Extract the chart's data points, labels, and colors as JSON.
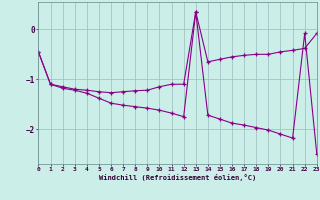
{
  "xlabel": "Windchill (Refroidissement éolien,°C)",
  "background_color": "#cceee8",
  "plot_bg_color": "#cceee8",
  "line_color": "#880088",
  "grid_color": "#99bbbb",
  "x_ticks": [
    0,
    1,
    2,
    3,
    4,
    5,
    6,
    7,
    8,
    9,
    10,
    11,
    12,
    13,
    14,
    15,
    16,
    17,
    18,
    19,
    20,
    21,
    22,
    23
  ],
  "y_ticks": [
    0,
    -1,
    -2
  ],
  "ylim": [
    -2.7,
    0.55
  ],
  "xlim": [
    0,
    23
  ],
  "series1": [
    -0.45,
    -1.1,
    -1.15,
    -1.2,
    -1.22,
    -1.25,
    -1.27,
    -1.25,
    -1.23,
    -1.22,
    -1.15,
    -1.1,
    -1.1,
    0.35,
    -0.65,
    -0.6,
    -0.55,
    -0.52,
    -0.5,
    -0.5,
    -0.45,
    -0.42,
    -0.38,
    -0.08
  ],
  "series2": [
    -0.45,
    -1.1,
    -1.18,
    -1.22,
    -1.28,
    -1.38,
    -1.48,
    -1.52,
    -1.55,
    -1.58,
    -1.62,
    -1.68,
    -1.75,
    0.35,
    -1.72,
    -1.8,
    -1.88,
    -1.92,
    -1.97,
    -2.02,
    -2.1,
    -2.18,
    -0.08,
    -2.5
  ]
}
